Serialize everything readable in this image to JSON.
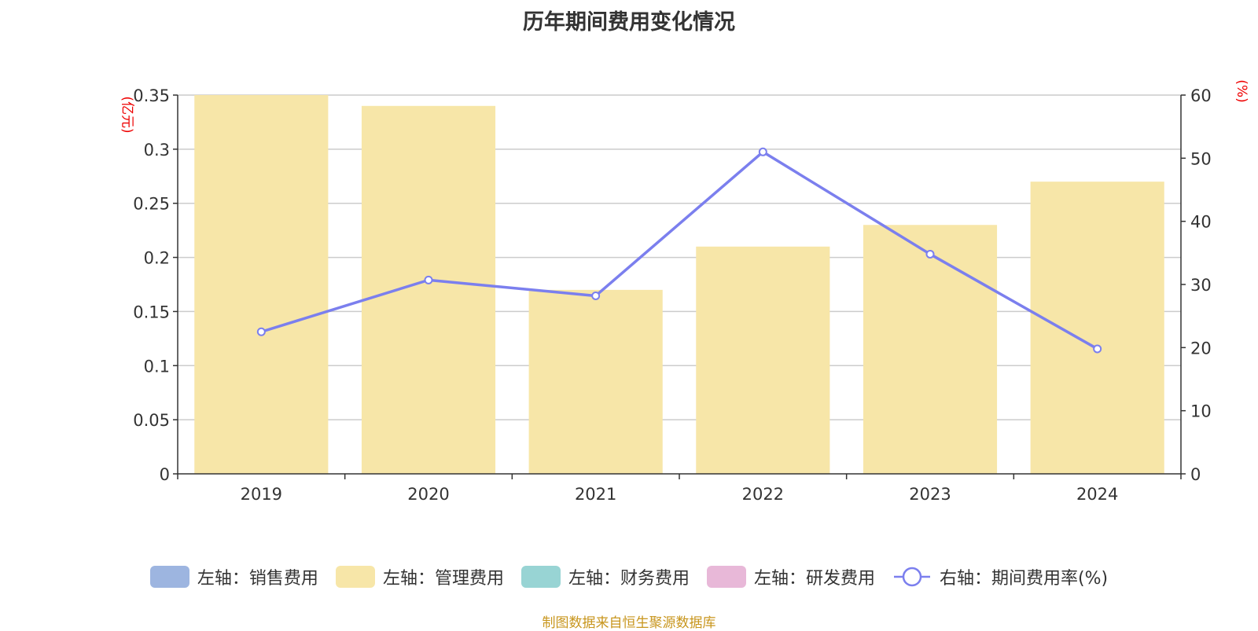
{
  "title": "历年期间费用变化情况",
  "left_unit": "(亿元)",
  "right_unit": "(%)",
  "footer": "制图数据来自恒生聚源数据库",
  "colors": {
    "sales": "#9db5e0",
    "admin": "#f7e6a8",
    "finance": "#98d4d4",
    "rnd": "#e8b8d8",
    "rate": "#7b7fee"
  },
  "legend": [
    {
      "label": "左轴：销售费用",
      "color": "#9db5e0",
      "type": "box"
    },
    {
      "label": "左轴：管理费用",
      "color": "#f7e6a8",
      "type": "box"
    },
    {
      "label": "左轴：财务费用",
      "color": "#98d4d4",
      "type": "box"
    },
    {
      "label": "左轴：研发费用",
      "color": "#e8b8d8",
      "type": "box"
    },
    {
      "label": "右轴：期间费用率(%)",
      "color": "#7b7fee",
      "type": "line"
    }
  ],
  "chart_data": {
    "type": "bar",
    "title": "历年期间费用变化情况",
    "categories": [
      "2019",
      "2020",
      "2021",
      "2022",
      "2023",
      "2024"
    ],
    "series": [
      {
        "name": "左轴：管理费用",
        "axis": "left",
        "type": "bar",
        "values": [
          0.35,
          0.34,
          0.17,
          0.21,
          0.23,
          0.27
        ]
      },
      {
        "name": "右轴：期间费用率(%)",
        "axis": "right",
        "type": "line",
        "values": [
          22.5,
          30.7,
          28.2,
          51.0,
          34.8,
          19.8
        ]
      }
    ],
    "y_left": {
      "label": "(亿元)",
      "lim": [
        0,
        0.35
      ],
      "ticks": [
        "0",
        "0.05",
        "0.1",
        "0.15",
        "0.2",
        "0.25",
        "0.3",
        "0.35"
      ]
    },
    "y_right": {
      "label": "(%)",
      "lim": [
        0,
        60
      ],
      "ticks": [
        "0",
        "10",
        "20",
        "30",
        "40",
        "50",
        "60"
      ]
    },
    "grid": true,
    "legend_position": "bottom"
  }
}
